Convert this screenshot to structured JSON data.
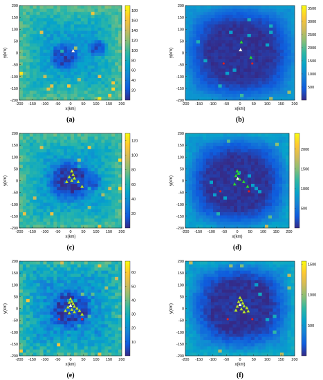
{
  "colors": {
    "parula": [
      "#352a87",
      "#0f5cdd",
      "#1481d6",
      "#06a4ca",
      "#2eb7a4",
      "#87bf77",
      "#d1bb59",
      "#fec832",
      "#f9fb0e"
    ]
  },
  "chart_data": [
    {
      "type": "heatmap",
      "panel_label": "(a)",
      "xlabel": "x(km)",
      "ylabel": "y(km)",
      "xlim": [
        -200,
        200
      ],
      "ylim": [
        -200,
        200
      ],
      "xticks": [
        -200,
        -150,
        -100,
        -50,
        0,
        50,
        100,
        150,
        200
      ],
      "yticks": [
        200,
        150,
        100,
        50,
        0,
        -50,
        -100,
        -150,
        -200
      ],
      "colorbar": {
        "min": 0,
        "max": 190,
        "ticks": [
          20,
          40,
          60,
          80,
          100,
          120,
          140,
          160,
          180
        ]
      },
      "field": {
        "background": 0.32,
        "holes": [
          [
            -25,
            -15,
            48,
            0.08
          ],
          [
            105,
            20,
            30,
            0.1
          ]
        ],
        "noise": 0.14
      },
      "markers": [
        {
          "x": 10,
          "y": 8,
          "color": "#ffffff"
        }
      ]
    },
    {
      "type": "heatmap",
      "panel_label": "(b)",
      "xlabel": "x(km)",
      "ylabel": "y(km)",
      "xlim": [
        -200,
        200
      ],
      "ylim": [
        -200,
        200
      ],
      "xticks": [
        -200,
        -150,
        -100,
        -50,
        0,
        50,
        100,
        150,
        200
      ],
      "yticks": [
        200,
        150,
        100,
        50,
        0,
        -50,
        -100,
        -150,
        -200
      ],
      "colorbar": {
        "min": 0,
        "max": 3600,
        "ticks": [
          500,
          1000,
          1500,
          2000,
          2500,
          3000,
          3500
        ]
      },
      "field": {
        "background": 0.1,
        "holes": [
          [
            0,
            0,
            165,
            0.02
          ]
        ],
        "noise": 0.05
      },
      "markers": [
        {
          "x": 5,
          "y": 45,
          "color": "#2ad63a"
        },
        {
          "x": 2,
          "y": 12,
          "color": "#ffffff"
        },
        {
          "x": 40,
          "y": -20,
          "color": "#2ad63a"
        },
        {
          "x": -60,
          "y": -45,
          "color": "#e02020"
        },
        {
          "x": 45,
          "y": -45,
          "color": "#e02020"
        }
      ]
    },
    {
      "type": "heatmap",
      "panel_label": "(c)",
      "xlabel": "x(km)",
      "ylabel": "y(km)",
      "xlim": [
        -200,
        200
      ],
      "ylim": [
        -200,
        200
      ],
      "xticks": [
        -200,
        -150,
        -100,
        -50,
        0,
        50,
        100,
        150,
        200
      ],
      "yticks": [
        200,
        150,
        100,
        50,
        0,
        -50,
        -100,
        -150,
        -200
      ],
      "colorbar": {
        "min": 0,
        "max": 130,
        "ticks": [
          20,
          40,
          60,
          80,
          100,
          120
        ]
      },
      "field": {
        "background": 0.3,
        "holes": [
          [
            0,
            0,
            75,
            0.05
          ],
          [
            80,
            -5,
            35,
            0.12
          ]
        ],
        "noise": 0.14
      },
      "markers": [
        {
          "x": 5,
          "y": 40,
          "color": "#b8e62e"
        },
        {
          "x": 10,
          "y": 25,
          "color": "#b8e62e"
        },
        {
          "x": -5,
          "y": 15,
          "color": "#b8e62e"
        },
        {
          "x": 15,
          "y": 10,
          "color": "#b8e62e"
        },
        {
          "x": 5,
          "y": 0,
          "color": "#b8e62e"
        },
        {
          "x": 30,
          "y": -5,
          "color": "#b8e62e"
        },
        {
          "x": -15,
          "y": -5,
          "color": "#b8e62e"
        },
        {
          "x": 45,
          "y": -25,
          "color": "#b8e62e"
        }
      ]
    },
    {
      "type": "heatmap",
      "panel_label": "(d)",
      "xlabel": "x(km)",
      "ylabel": "y(km)",
      "xlim": [
        -200,
        200
      ],
      "ylim": [
        -200,
        200
      ],
      "xticks": [
        -200,
        -150,
        -100,
        -50,
        0,
        50,
        100,
        150,
        200
      ],
      "yticks": [
        200,
        150,
        100,
        50,
        0,
        -50,
        -100,
        -150,
        -200
      ],
      "colorbar": {
        "min": 0,
        "max": 2400,
        "ticks": [
          500,
          1000,
          1500,
          2000
        ]
      },
      "field": {
        "background": 0.14,
        "holes": [
          [
            0,
            -10,
            160,
            0.02
          ]
        ],
        "noise": 0.06
      },
      "markers": [
        {
          "x": 0,
          "y": 40,
          "color": "#2ad63a"
        },
        {
          "x": 5,
          "y": 30,
          "color": "#2ad63a"
        },
        {
          "x": -5,
          "y": 20,
          "color": "#2ad63a"
        },
        {
          "x": 2,
          "y": 8,
          "color": "#ffffff"
        },
        {
          "x": 10,
          "y": 5,
          "color": "#2ad63a"
        },
        {
          "x": 25,
          "y": -5,
          "color": "#2ad63a"
        },
        {
          "x": -10,
          "y": -15,
          "color": "#2ad63a"
        },
        {
          "x": 40,
          "y": -25,
          "color": "#2ad63a"
        },
        {
          "x": -65,
          "y": -45,
          "color": "#e02020"
        },
        {
          "x": 45,
          "y": -45,
          "color": "#e02020"
        }
      ]
    },
    {
      "type": "heatmap",
      "panel_label": "(e)",
      "xlabel": "x(km)",
      "ylabel": "y(km)",
      "xlim": [
        -200,
        200
      ],
      "ylim": [
        -200,
        200
      ],
      "xticks": [
        -200,
        -150,
        -100,
        -50,
        0,
        50,
        100,
        150,
        200
      ],
      "yticks": [
        200,
        150,
        100,
        50,
        0,
        -50,
        -100,
        -150,
        -200
      ],
      "colorbar": {
        "min": 0,
        "max": 68,
        "ticks": [
          10,
          20,
          30,
          40,
          50,
          60
        ]
      },
      "field": {
        "background": 0.26,
        "holes": [
          [
            0,
            -5,
            70,
            0.05
          ]
        ],
        "noise": 0.2
      },
      "markers": [
        {
          "x": 0,
          "y": 40,
          "color": "#b8e62e"
        },
        {
          "x": 5,
          "y": 30,
          "color": "#b8e62e"
        },
        {
          "x": -5,
          "y": 25,
          "color": "#b8e62e"
        },
        {
          "x": 10,
          "y": 20,
          "color": "#b8e62e"
        },
        {
          "x": 0,
          "y": 12,
          "color": "#ffffff"
        },
        {
          "x": 15,
          "y": 8,
          "color": "#b8e62e"
        },
        {
          "x": -10,
          "y": 5,
          "color": "#b8e62e"
        },
        {
          "x": 25,
          "y": 0,
          "color": "#b8e62e"
        },
        {
          "x": 5,
          "y": -5,
          "color": "#b8e62e"
        },
        {
          "x": -20,
          "y": -10,
          "color": "#b8e62e"
        },
        {
          "x": 35,
          "y": -10,
          "color": "#b8e62e"
        },
        {
          "x": 15,
          "y": -15,
          "color": "#b8e62e"
        },
        {
          "x": -5,
          "y": -20,
          "color": "#b8e62e"
        },
        {
          "x": 45,
          "y": -25,
          "color": "#b8e62e"
        },
        {
          "x": -45,
          "y": -45,
          "color": "#e02020"
        },
        {
          "x": 45,
          "y": -45,
          "color": "#e02020"
        }
      ]
    },
    {
      "type": "heatmap",
      "panel_label": "(f)",
      "xlabel": "x(km)",
      "ylabel": "y(km)",
      "xlim": [
        -200,
        200
      ],
      "ylim": [
        -200,
        200
      ],
      "xticks": [
        -200,
        -150,
        -100,
        -50,
        0,
        50,
        100,
        150,
        200
      ],
      "yticks": [
        200,
        150,
        100,
        50,
        0,
        -50,
        -100,
        -150,
        -200
      ],
      "colorbar": {
        "min": 0,
        "max": 1550,
        "ticks": [
          500,
          1000,
          1500
        ]
      },
      "field": {
        "background": 0.16,
        "holes": [
          [
            0,
            10,
            150,
            0.02
          ]
        ],
        "noise": 0.08
      },
      "markers": [
        {
          "x": 0,
          "y": 45,
          "color": "#b8e62e"
        },
        {
          "x": 5,
          "y": 35,
          "color": "#b8e62e"
        },
        {
          "x": -5,
          "y": 28,
          "color": "#b8e62e"
        },
        {
          "x": 10,
          "y": 22,
          "color": "#b8e62e"
        },
        {
          "x": 0,
          "y": 15,
          "color": "#ffffff"
        },
        {
          "x": 15,
          "y": 10,
          "color": "#b8e62e"
        },
        {
          "x": -10,
          "y": 8,
          "color": "#b8e62e"
        },
        {
          "x": 25,
          "y": 2,
          "color": "#b8e62e"
        },
        {
          "x": 5,
          "y": -3,
          "color": "#b8e62e"
        },
        {
          "x": -15,
          "y": -8,
          "color": "#b8e62e"
        },
        {
          "x": 30,
          "y": -12,
          "color": "#b8e62e"
        },
        {
          "x": 15,
          "y": -15,
          "color": "#b8e62e"
        },
        {
          "x": -45,
          "y": -45,
          "color": "#e02020"
        },
        {
          "x": 45,
          "y": -45,
          "color": "#e02020"
        }
      ]
    }
  ]
}
